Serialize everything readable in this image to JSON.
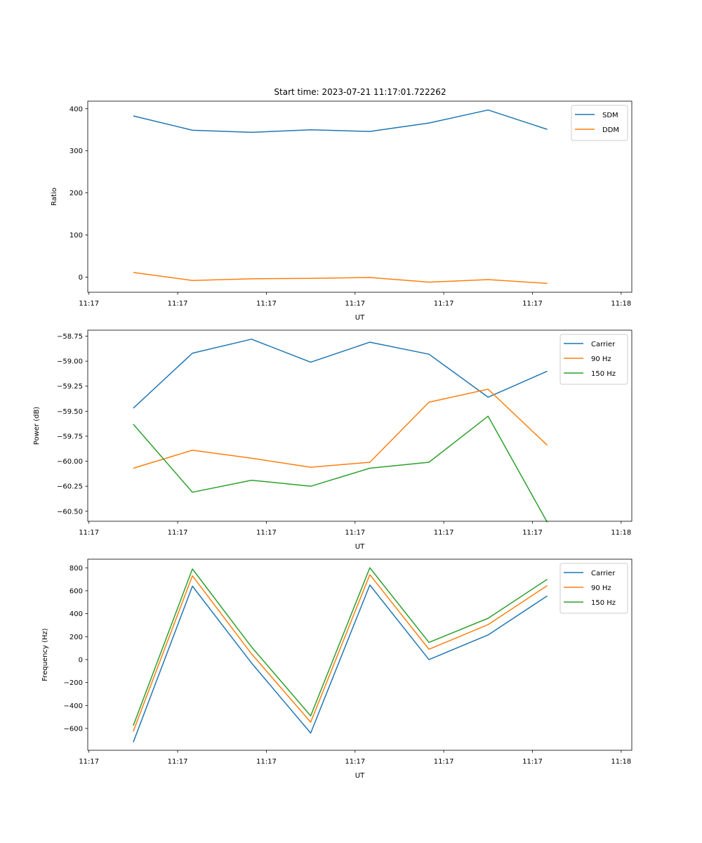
{
  "figure_title": "Start time: 2023-07-21 11:17:01.722262",
  "chart_data": [
    {
      "type": "line",
      "title": "Start time: 2023-07-21 11:17:01.722262",
      "xlabel": "UT",
      "ylabel": "Ratio",
      "x": [
        0,
        1,
        2,
        3,
        4,
        5,
        6,
        7
      ],
      "xlim": [
        -0.77,
        8.43
      ],
      "xticks": [
        -0.75,
        0.75,
        2.25,
        3.75,
        5.25,
        6.75,
        8.25
      ],
      "xtick_labels": [
        "11:17",
        "11:17",
        "11:17",
        "11:17",
        "11:17",
        "11:17",
        "11:18"
      ],
      "ylim": [
        -36,
        418
      ],
      "yticks": [
        0,
        100,
        200,
        300,
        400
      ],
      "ytick_labels": [
        "0",
        "100",
        "200",
        "300",
        "400"
      ],
      "legend_position": "top-right",
      "series": [
        {
          "name": "SDM",
          "color": "#1f77b4",
          "values": [
            383,
            349,
            344,
            350,
            346,
            366,
            397,
            351
          ]
        },
        {
          "name": "DDM",
          "color": "#ff7f0e",
          "values": [
            11,
            -8,
            -4,
            -3,
            -1,
            -12,
            -6,
            -15
          ]
        }
      ]
    },
    {
      "type": "line",
      "title": "",
      "xlabel": "UT",
      "ylabel": "Power (dB)",
      "x": [
        0,
        1,
        2,
        3,
        4,
        5,
        6,
        7
      ],
      "xlim": [
        -0.77,
        8.43
      ],
      "xticks": [
        -0.75,
        0.75,
        2.25,
        3.75,
        5.25,
        6.75,
        8.25
      ],
      "xtick_labels": [
        "11:17",
        "11:17",
        "11:17",
        "11:17",
        "11:17",
        "11:17",
        "11:18"
      ],
      "ylim": [
        -60.6,
        -58.69
      ],
      "yticks": [
        -60.5,
        -60.25,
        -60.0,
        -59.75,
        -59.5,
        -59.25,
        -59.0,
        -58.75
      ],
      "ytick_labels": [
        "−60.50",
        "−60.25",
        "−60.00",
        "−59.75",
        "−59.50",
        "−59.25",
        "−59.00",
        "−58.75"
      ],
      "legend_position": "top-right",
      "series": [
        {
          "name": "Carrier",
          "color": "#1f77b4",
          "values": [
            -59.47,
            -58.92,
            -58.78,
            -59.01,
            -58.81,
            -58.93,
            -59.36,
            -59.1
          ]
        },
        {
          "name": "90 Hz",
          "color": "#ff7f0e",
          "values": [
            -60.07,
            -59.89,
            -59.97,
            -60.06,
            -60.01,
            -59.41,
            -59.28,
            -59.84
          ]
        },
        {
          "name": "150 Hz",
          "color": "#2ca02c",
          "values": [
            -59.63,
            -60.31,
            -60.19,
            -60.25,
            -60.07,
            -60.01,
            -59.55,
            -60.61
          ]
        }
      ]
    },
    {
      "type": "line",
      "title": "",
      "xlabel": "UT",
      "ylabel": "Frequency (Hz)",
      "x": [
        0,
        1,
        2,
        3,
        4,
        5,
        6,
        7
      ],
      "xlim": [
        -0.77,
        8.43
      ],
      "xticks": [
        -0.75,
        0.75,
        2.25,
        3.75,
        5.25,
        6.75,
        8.25
      ],
      "xtick_labels": [
        "11:17",
        "11:17",
        "11:17",
        "11:17",
        "11:17",
        "11:17",
        "11:18"
      ],
      "ylim": [
        -790,
        875
      ],
      "yticks": [
        -600,
        -400,
        -200,
        0,
        200,
        400,
        600,
        800
      ],
      "ytick_labels": [
        "−600",
        "−400",
        "−200",
        "0",
        "200",
        "400",
        "600",
        "800"
      ],
      "legend_position": "top-right",
      "series": [
        {
          "name": "Carrier",
          "color": "#1f77b4",
          "values": [
            -720,
            640,
            -30,
            -640,
            650,
            0,
            215,
            555
          ]
        },
        {
          "name": "90 Hz",
          "color": "#ff7f0e",
          "values": [
            -625,
            730,
            50,
            -545,
            740,
            90,
            305,
            645
          ]
        },
        {
          "name": "150 Hz",
          "color": "#2ca02c",
          "values": [
            -575,
            790,
            110,
            -490,
            800,
            150,
            360,
            700
          ]
        }
      ]
    }
  ]
}
